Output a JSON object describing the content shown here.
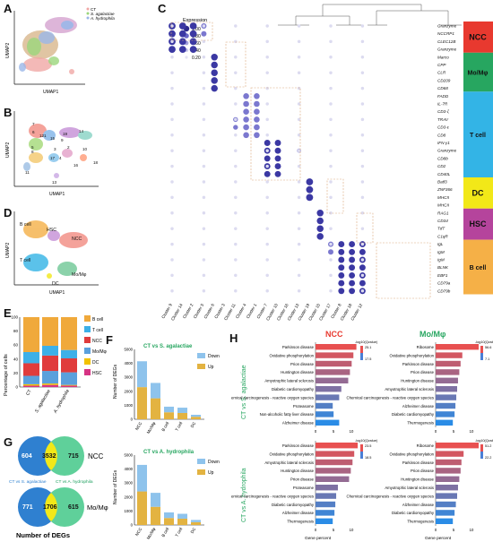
{
  "panels": {
    "A": {
      "letter": "A",
      "legend": [
        "CT",
        "S. agalactiae",
        "A. hydrophila"
      ],
      "legend_colors": [
        "#f0a7a5",
        "#9bd67c",
        "#9ab7e8"
      ],
      "xlabel": "UMAP1",
      "ylabel": "UMAP2"
    },
    "B": {
      "letter": "B",
      "xlabel": "UMAP1",
      "ylabel": "UMAP2",
      "clusters": [
        "7",
        "6",
        "12",
        "1",
        "15",
        "19",
        "14",
        "5",
        "8",
        "3",
        "2",
        "17",
        "4",
        "11",
        "16",
        "18",
        "13",
        "10",
        "9"
      ]
    },
    "C": {
      "letter": "C",
      "legend_title": "Expression",
      "legend_ticks": [
        "1.00",
        "0.80",
        "0.60",
        "0.40",
        "0.20"
      ],
      "genes": [
        "Granzyme",
        "NCCRP1",
        "CLEC12B",
        "Granzyme",
        "Marco",
        "CPP",
        "CLR",
        "CD209",
        "CD68",
        "FADD",
        "IL-7R",
        "CD3-ζ",
        "TRAV",
        "CD3-ε",
        "CD8",
        "IFN-γ1",
        "Granzyme",
        "CD8b",
        "CD2",
        "CD40L",
        "Batf3",
        "ZNF366",
        "MHCII",
        "MHCII",
        "RAG1",
        "CD34",
        "TdT",
        "C1qR",
        "IgL",
        "IgM",
        "IgM",
        "BLNK",
        "EBF1",
        "CD79a",
        "CD79b"
      ],
      "clusters": [
        "Cluster 9",
        "Cluster 14",
        "Cluster 2",
        "Cluster 5",
        "Cluster 6",
        "Cluster 3",
        "Cluster 11",
        "Cluster 4",
        "Cluster 1",
        "Cluster 7",
        "Cluster 10",
        "Cluster 16",
        "Cluster 13",
        "Cluster 19",
        "Cluster 15",
        "Cluster 17",
        "Cluster 8",
        "Cluster 18",
        "Cluster 12"
      ],
      "groups": [
        {
          "name": "NCC",
          "color": "#e8392f"
        },
        {
          "name": "Mo/Mφ",
          "color": "#27a660"
        },
        {
          "name": "T cell",
          "color": "#33b4e6"
        },
        {
          "name": "DC",
          "color": "#f2e818"
        },
        {
          "name": "HSC",
          "color": "#b5449c"
        },
        {
          "name": "B cell",
          "color": "#f5b047"
        }
      ]
    },
    "D": {
      "letter": "D",
      "xlabel": "UMAP1",
      "ylabel": "UMAP2",
      "labels": [
        "B cell",
        "HSC",
        "NCC",
        "T cell",
        "Mo/Mφ",
        "DC"
      ]
    },
    "E": {
      "letter": "E",
      "ylabel": "Percentage of cells"
    },
    "F": {
      "letter": "F",
      "ylabel": "Number of DEGs"
    },
    "G": {
      "letter": "G",
      "venn1": {
        "left": "604",
        "mid": "3532",
        "right": "715",
        "label": "NCC"
      },
      "venn2": {
        "left": "771",
        "mid": "1706",
        "right": "615",
        "label": "Mo/Mφ"
      },
      "left_caption": "CT vs S. agalactiae",
      "right_caption": "CT vs A. hydrophila",
      "footer": "Number of DEGs"
    },
    "H": {
      "letter": "H",
      "col1": "NCC",
      "col2": "Mo/Mφ",
      "row1": "CT vs S. agalactiae",
      "row2": "CT vs A. hydrophila",
      "xlabel": "Gene percent",
      "legend_title": "-log10(Qvalue)",
      "tl_terms": [
        "Parkinson disease",
        "Oxidative phosphorylation",
        "Prion disease",
        "Huntington disease",
        "Amyotrophic lateral sclerosis",
        "Diabetic cardiomyopathy",
        "Chemical carcinogenesis - reactive oxygen species",
        "Proteasome",
        "Non-alcoholic fatty liver disease",
        "Alzheimer disease"
      ],
      "tr_terms": [
        "Ribosome",
        "Oxidative phosphorylation",
        "Parkinson disease",
        "Prion disease",
        "Huntington disease",
        "Amyotrophic lateral sclerosis",
        "Chemical carcinogenesis - reactive oxygen species",
        "Alzheimer disease",
        "Diabetic cardiomyopathy",
        "Thermogenesis"
      ],
      "bl_terms": [
        "Parkinson disease",
        "Oxidative phosphorylation",
        "Amyotrophic lateral sclerosis",
        "Huntington disease",
        "Prion disease",
        "Proteasome",
        "Chemical carcinogenesis - reactive oxygen species",
        "Diabetic cardiomyopathy",
        "Alzheimer disease",
        "Thermogenesis"
      ],
      "br_terms": [
        "Ribosome",
        "Oxidative phosphorylation",
        "Parkinson disease",
        "Prion disease",
        "Huntington disease",
        "Amyotrophic lateral sclerosis",
        "Chemical carcinogenesis - reactive oxygen species",
        "Alzheimer disease",
        "Diabetic cardiomyopathy",
        "Thermogenesis"
      ],
      "tl_values": [
        95,
        88,
        84,
        80,
        76,
        60,
        55,
        40,
        42,
        55
      ],
      "tr_values": [
        100,
        62,
        58,
        55,
        52,
        50,
        48,
        46,
        44,
        40
      ],
      "bl_values": [
        98,
        90,
        86,
        82,
        78,
        52,
        48,
        46,
        44,
        40
      ],
      "br_values": [
        100,
        65,
        60,
        58,
        55,
        52,
        50,
        47,
        44,
        40
      ],
      "tl_ticks": [
        "0",
        "5",
        "10"
      ],
      "tl_legend": [
        "25.1",
        "17.5"
      ],
      "tr_ticks": [
        "0",
        "5",
        "10"
      ],
      "tr_legend": [
        "56.6",
        "7.1"
      ],
      "bl_ticks": [
        "0",
        "5",
        "10"
      ],
      "bl_legend": [
        "23.5",
        "18.5"
      ],
      "br_ticks": [
        "0",
        "5",
        "10"
      ],
      "br_legend": [
        "51.2",
        "22.2"
      ]
    }
  },
  "chart_data": [
    {
      "type": "bar",
      "panel": "E",
      "categories": [
        "CT",
        "S. agalactiae",
        "A. hydrophila"
      ],
      "ylabel": "Percentage of cells",
      "ylim": [
        0,
        100
      ],
      "yticks": [
        "0",
        "20",
        "40",
        "60",
        "80",
        "100"
      ],
      "series": [
        {
          "name": "HSC",
          "values": [
            2,
            3,
            2
          ]
        },
        {
          "name": "DC",
          "values": [
            2,
            2,
            1
          ]
        },
        {
          "name": "Mo/Mφ",
          "values": [
            12,
            18,
            18
          ]
        },
        {
          "name": "NCC",
          "values": [
            18,
            22,
            20
          ]
        },
        {
          "name": "T cell",
          "values": [
            16,
            14,
            12
          ]
        },
        {
          "name": "B cell",
          "values": [
            50,
            41,
            47
          ]
        }
      ],
      "colors": [
        "#d63384",
        "#f2c200",
        "#5aa0dc",
        "#e03c3c",
        "#3db0e8",
        "#f0a93b"
      ]
    },
    {
      "type": "bar",
      "panel": "F-top",
      "title": "CT vs S. agalactiae",
      "categories": [
        "NCC",
        "Mo/Mφ",
        "B cell",
        "T cell",
        "DC"
      ],
      "ylabel": "Number of DEGs",
      "ylim": [
        0,
        5000
      ],
      "yticks": [
        "0",
        "1000",
        "2000",
        "3000",
        "4000",
        "5000"
      ],
      "series": [
        {
          "name": "Up",
          "values": [
            2300,
            1500,
            500,
            450,
            180
          ]
        },
        {
          "name": "Down",
          "values": [
            1850,
            1100,
            400,
            380,
            140
          ]
        }
      ]
    },
    {
      "type": "bar",
      "panel": "F-bottom",
      "title": "CT vs A. hydrophila",
      "categories": [
        "NCC",
        "Mo/Mφ",
        "B cell",
        "T cell",
        "DC"
      ],
      "ylabel": "Number of DEGs",
      "ylim": [
        0,
        5000
      ],
      "yticks": [
        "0",
        "1000",
        "2000",
        "3000",
        "4000",
        "5000"
      ],
      "series": [
        {
          "name": "Up",
          "values": [
            2400,
            1300,
            500,
            450,
            200
          ]
        },
        {
          "name": "Down",
          "values": [
            1900,
            1000,
            400,
            350,
            160
          ]
        }
      ]
    }
  ]
}
